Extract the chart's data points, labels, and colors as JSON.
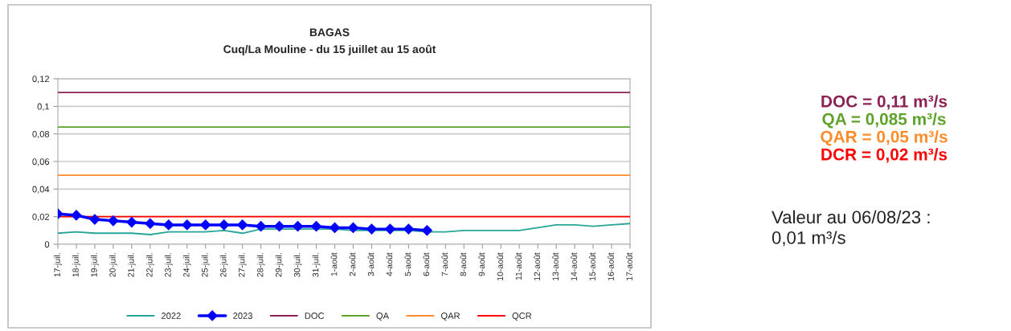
{
  "chart_data": {
    "type": "line",
    "title": "BAGAS",
    "subtitle": "Cuq/La Mouline - du 15 juillet au 15 août",
    "categories": [
      "17-juil.",
      "18-juil.",
      "19-juil.",
      "20-juil.",
      "21-juil.",
      "22-juil.",
      "23-juil.",
      "24-juil.",
      "25-juil.",
      "26-juil.",
      "27-juil.",
      "28-juil.",
      "29-juil.",
      "30-juil.",
      "31-juil.",
      "1-août",
      "2-août",
      "3-août",
      "4-août",
      "5-août",
      "6-août",
      "7-août",
      "8-août",
      "9-août",
      "10-août",
      "11-août",
      "12-août",
      "13-août",
      "14-août",
      "15-août",
      "16-août",
      "17-août"
    ],
    "series": [
      {
        "name": "2022",
        "color": "#26a69a",
        "marker": "none",
        "values": [
          0.008,
          0.009,
          0.008,
          0.008,
          0.008,
          0.007,
          0.009,
          0.009,
          0.009,
          0.01,
          0.008,
          0.011,
          0.011,
          0.011,
          0.011,
          0.011,
          0.01,
          0.01,
          0.01,
          0.01,
          0.009,
          0.009,
          0.01,
          0.01,
          0.01,
          0.01,
          0.012,
          0.014,
          0.014,
          0.013,
          0.014,
          0.015
        ]
      },
      {
        "name": "2023",
        "color": "#0000ff",
        "marker": "diamond",
        "values": [
          0.022,
          0.021,
          0.018,
          0.017,
          0.016,
          0.015,
          0.014,
          0.014,
          0.014,
          0.014,
          0.014,
          0.013,
          0.013,
          0.013,
          0.013,
          0.012,
          0.012,
          0.011,
          0.011,
          0.011,
          0.01,
          null,
          null,
          null,
          null,
          null,
          null,
          null,
          null,
          null,
          null,
          null
        ]
      }
    ],
    "ref_lines": [
      {
        "axis": "y",
        "value": 0.11,
        "label": "DOC",
        "color": "#8b2252"
      },
      {
        "axis": "y",
        "value": 0.085,
        "label": "QA",
        "color": "#5ea22c"
      },
      {
        "axis": "y",
        "value": 0.05,
        "label": "QAR",
        "color": "#ff8c2a"
      },
      {
        "axis": "y",
        "value": 0.02,
        "label": "QCR",
        "color": "#ff0000"
      }
    ],
    "ylim": [
      0,
      0.12
    ],
    "yticks": [
      0,
      {
        "value": 0.02,
        "label": "0,02"
      },
      {
        "value": 0.04,
        "label": "0,04"
      },
      {
        "value": 0.06,
        "label": "0,06"
      },
      {
        "value": 0.08,
        "label": "0,08"
      },
      {
        "value": 0.1,
        "label": "0,1"
      },
      {
        "value": 0.12,
        "label": "0,12"
      }
    ],
    "grid": "y",
    "legend": "bottom",
    "annotations": [
      "DOC = 0,11 m³/s",
      "QA = 0,085 m³/s",
      "QAR = 0,05 m³/s",
      "DCR = 0,02 m³/s",
      "Valeur au 06/08/23 :\n0,01 m³/s"
    ]
  }
}
